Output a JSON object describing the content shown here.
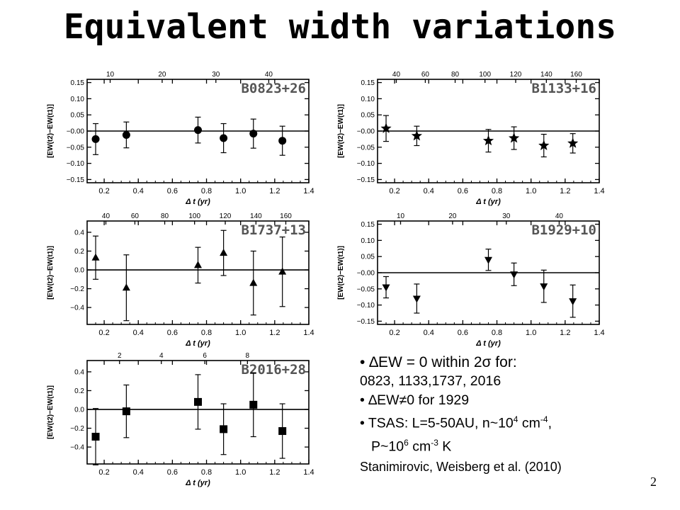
{
  "title": "Equivalent width variations",
  "page_number": "2",
  "notes": {
    "bullet_1_prefix": "•  ",
    "bullet_1_text": "∆EW = 0 within 2σ for:",
    "bullet_1_list": "0823, 1133,1737, 2016",
    "bullet_2": "• ∆EW≠0 for 1929",
    "bullet_3_main": "• TSAS: L=5-50AU, n~10",
    "bullet_3_exp1": "4",
    "bullet_3_mid": " cm",
    "bullet_3_exp2": "-4",
    "bullet_3_end": ",",
    "bullet_3_cont_a": "P~10",
    "bullet_3_cont_exp1": "6",
    "bullet_3_cont_b": " cm",
    "bullet_3_cont_exp2": "-3",
    "bullet_3_cont_c": " K",
    "citation": "Stanimirovic, Weisberg et al. (2010)"
  },
  "chart_data": [
    {
      "type": "scatter",
      "title": "B0823+26",
      "xlabel": "Δ t (yr)",
      "ylabel": "[EW(t2)−EW(t1)]",
      "xlim": [
        0.1,
        1.4
      ],
      "ylim": [
        -0.16,
        0.16
      ],
      "xticks": [
        0.2,
        0.4,
        0.6,
        0.8,
        1.0,
        1.2,
        1.4
      ],
      "xtick_labels": [
        "0.2",
        "0.4",
        "0.6",
        "0.8",
        "1.0",
        "1.2",
        "1.4"
      ],
      "yticks": [
        -0.15,
        -0.1,
        -0.05,
        0.0,
        0.05,
        0.1,
        0.15
      ],
      "ytick_labels": [
        "−0.15",
        "−0.10",
        "−0.05",
        "−0.00",
        "0.05",
        "0.10",
        "0.15"
      ],
      "top_axis_ticks": [
        {
          "x": 0.235,
          "label": "10"
        },
        {
          "x": 0.54,
          "label": "20"
        },
        {
          "x": 0.855,
          "label": "30"
        },
        {
          "x": 1.165,
          "label": "40"
        }
      ],
      "marker": "circle",
      "x": [
        0.15,
        0.33,
        0.75,
        0.9,
        1.075,
        1.245
      ],
      "y": [
        -0.025,
        -0.012,
        0.003,
        -0.022,
        -0.008,
        -0.03
      ],
      "err": [
        0.048,
        0.04,
        0.04,
        0.045,
        0.045,
        0.045
      ],
      "zero_line": true
    },
    {
      "type": "scatter",
      "title": "B1133+16",
      "xlabel": "Δ t (yr)",
      "ylabel": "[EW(t2)−EW(t1)]",
      "xlim": [
        0.1,
        1.4
      ],
      "ylim": [
        -0.16,
        0.16
      ],
      "xticks": [
        0.2,
        0.4,
        0.6,
        0.8,
        1.0,
        1.2,
        1.4
      ],
      "xtick_labels": [
        "0.2",
        "0.4",
        "0.6",
        "0.8",
        "1.0",
        "1.2",
        "1.4"
      ],
      "yticks": [
        -0.15,
        -0.1,
        -0.05,
        0.0,
        0.05,
        0.1,
        0.15
      ],
      "ytick_labels": [
        "−0.15",
        "−0.10",
        "−0.05",
        "−0.00",
        "0.05",
        "0.10",
        "0.15"
      ],
      "top_axis_ticks": [
        {
          "x": 0.21,
          "label": "40"
        },
        {
          "x": 0.38,
          "label": "60"
        },
        {
          "x": 0.555,
          "label": "80"
        },
        {
          "x": 0.73,
          "label": "100"
        },
        {
          "x": 0.91,
          "label": "120"
        },
        {
          "x": 1.09,
          "label": "140"
        },
        {
          "x": 1.265,
          "label": "160"
        }
      ],
      "marker": "star",
      "x": [
        0.15,
        0.33,
        0.75,
        0.9,
        1.075,
        1.245
      ],
      "y": [
        0.008,
        -0.015,
        -0.03,
        -0.022,
        -0.045,
        -0.038
      ],
      "err": [
        0.04,
        0.03,
        0.035,
        0.035,
        0.035,
        0.03
      ],
      "zero_line": true
    },
    {
      "type": "scatter",
      "title": "B1737+13",
      "xlabel": "Δ t (yr)",
      "ylabel": "[EW(t2)−EW(t1)]",
      "xlim": [
        0.1,
        1.4
      ],
      "ylim": [
        -0.58,
        0.52
      ],
      "xticks": [
        0.2,
        0.4,
        0.6,
        0.8,
        1.0,
        1.2,
        1.4
      ],
      "xtick_labels": [
        "0.2",
        "0.4",
        "0.6",
        "0.8",
        "1.0",
        "1.2",
        "1.4"
      ],
      "yticks": [
        -0.4,
        -0.2,
        0.0,
        0.2,
        0.4
      ],
      "ytick_labels": [
        "−0.4",
        "−0.2",
        "0.0",
        "0.2",
        "0.4"
      ],
      "top_axis_ticks": [
        {
          "x": 0.21,
          "label": "40"
        },
        {
          "x": 0.38,
          "label": "60"
        },
        {
          "x": 0.555,
          "label": "80"
        },
        {
          "x": 0.73,
          "label": "100"
        },
        {
          "x": 0.91,
          "label": "120"
        },
        {
          "x": 1.09,
          "label": "140"
        },
        {
          "x": 1.265,
          "label": "160"
        }
      ],
      "marker": "triangle-up",
      "x": [
        0.15,
        0.33,
        0.75,
        0.9,
        1.075,
        1.245
      ],
      "y": [
        0.13,
        -0.19,
        0.05,
        0.18,
        -0.14,
        -0.02
      ],
      "err": [
        0.23,
        0.35,
        0.19,
        0.24,
        0.34,
        0.37
      ],
      "zero_line": true
    },
    {
      "type": "scatter",
      "title": "B1929+10",
      "xlabel": "Δ t (yr)",
      "ylabel": "[EW(t2)−EW(t1)]",
      "xlim": [
        0.1,
        1.4
      ],
      "ylim": [
        -0.16,
        0.16
      ],
      "xticks": [
        0.2,
        0.4,
        0.6,
        0.8,
        1.0,
        1.2,
        1.4
      ],
      "xtick_labels": [
        "0.2",
        "0.4",
        "0.6",
        "0.8",
        "1.0",
        "1.2",
        "1.4"
      ],
      "yticks": [
        -0.15,
        -0.1,
        -0.05,
        0.0,
        0.05,
        0.1,
        0.15
      ],
      "ytick_labels": [
        "−0.15",
        "−0.10",
        "−0.05",
        "−0.00",
        "0.05",
        "0.10",
        "0.15"
      ],
      "top_axis_ticks": [
        {
          "x": 0.235,
          "label": "10"
        },
        {
          "x": 0.54,
          "label": "20"
        },
        {
          "x": 0.855,
          "label": "30"
        },
        {
          "x": 1.165,
          "label": "40"
        }
      ],
      "marker": "triangle-down",
      "x": [
        0.15,
        0.33,
        0.75,
        0.9,
        1.075,
        1.245
      ],
      "y": [
        -0.045,
        -0.08,
        0.04,
        -0.005,
        -0.042,
        -0.088
      ],
      "err": [
        0.033,
        0.045,
        0.033,
        0.035,
        0.05,
        0.05
      ],
      "zero_line": true
    },
    {
      "type": "scatter",
      "title": "B2016+28",
      "xlabel": "Δ t (yr)",
      "ylabel": "[EW(t2)−EW(t1)]",
      "xlim": [
        0.1,
        1.4
      ],
      "ylim": [
        -0.58,
        0.52
      ],
      "xticks": [
        0.2,
        0.4,
        0.6,
        0.8,
        1.0,
        1.2,
        1.4
      ],
      "xtick_labels": [
        "0.2",
        "0.4",
        "0.6",
        "0.8",
        "1.0",
        "1.2",
        "1.4"
      ],
      "yticks": [
        -0.4,
        -0.2,
        0.0,
        0.2,
        0.4
      ],
      "ytick_labels": [
        "−0.4",
        "−0.2",
        "0.0",
        "0.2",
        "0.4"
      ],
      "top_axis_ticks": [
        {
          "x": 0.29,
          "label": "2"
        },
        {
          "x": 0.535,
          "label": "4"
        },
        {
          "x": 0.79,
          "label": "6"
        },
        {
          "x": 1.04,
          "label": "8"
        }
      ],
      "marker": "square",
      "x": [
        0.15,
        0.33,
        0.75,
        0.9,
        1.075,
        1.245
      ],
      "y": [
        -0.29,
        -0.02,
        0.08,
        -0.21,
        0.05,
        -0.23
      ],
      "err": [
        0.3,
        0.28,
        0.29,
        0.27,
        0.34,
        0.29
      ],
      "zero_line": true
    }
  ]
}
